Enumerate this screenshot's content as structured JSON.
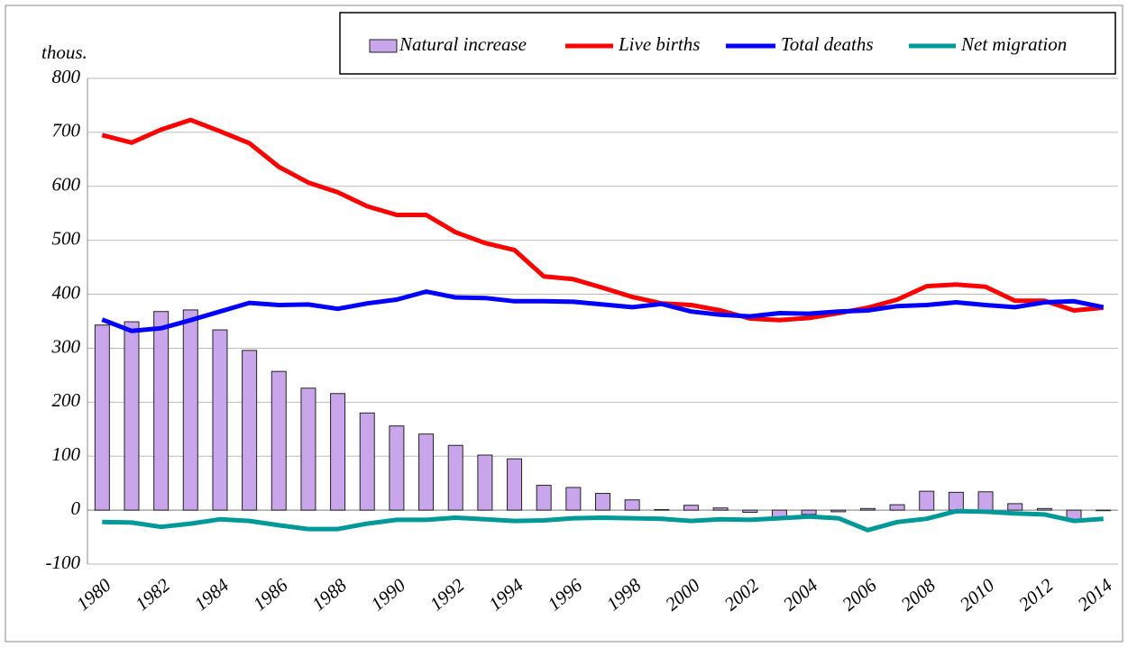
{
  "chart_data": {
    "type": "bar",
    "y_unit_label": "thous.",
    "categories": [
      "1980",
      null,
      "1982",
      null,
      "1984",
      null,
      "1986",
      null,
      "1988",
      null,
      "1990",
      null,
      "1992",
      null,
      "1994",
      null,
      "1996",
      null,
      "1998",
      null,
      "2000",
      null,
      "2002",
      null,
      "2004",
      null,
      "2006",
      null,
      "2008",
      null,
      "2010",
      null,
      "2012",
      null,
      "2014"
    ],
    "series": [
      {
        "name": "Natural increase",
        "type": "bar",
        "color": "#c9a6ec",
        "values": [
          343,
          349,
          368,
          371,
          334,
          296,
          257,
          226,
          216,
          180,
          156,
          141,
          120,
          102,
          95,
          46,
          42,
          31,
          19,
          1,
          9,
          4,
          -4,
          -13,
          -8,
          -3,
          3,
          10,
          35,
          33,
          34,
          12,
          3,
          -17,
          -1
        ]
      },
      {
        "name": "Live births",
        "type": "line",
        "color": "#ff0000",
        "values": [
          695,
          681,
          705,
          723,
          702,
          680,
          636,
          607,
          589,
          563,
          547,
          547,
          515,
          495,
          482,
          433,
          428,
          412,
          395,
          383,
          380,
          370,
          355,
          352,
          356,
          365,
          375,
          390,
          415,
          418,
          414,
          388,
          388,
          370,
          375
        ]
      },
      {
        "name": "Total deaths",
        "type": "line",
        "color": "#0000ff",
        "values": [
          353,
          332,
          337,
          352,
          368,
          384,
          380,
          381,
          373,
          383,
          390,
          405,
          394,
          393,
          387,
          387,
          386,
          381,
          376,
          382,
          368,
          362,
          359,
          365,
          364,
          368,
          370,
          378,
          380,
          385,
          380,
          376,
          385,
          387,
          376
        ]
      },
      {
        "name": "Net migration",
        "type": "line",
        "color": "#009999",
        "values": [
          -22,
          -23,
          -31,
          -25,
          -17,
          -20,
          -28,
          -35,
          -35,
          -25,
          -18,
          -18,
          -14,
          -17,
          -20,
          -19,
          -15,
          -14,
          -15,
          -16,
          -20,
          -17,
          -18,
          -15,
          -12,
          -15,
          -37,
          -22,
          -16,
          -2,
          -3,
          -6,
          -8,
          -20,
          -16
        ]
      }
    ],
    "ylim": [
      -100,
      800
    ],
    "yticks": [
      -100,
      0,
      100,
      200,
      300,
      400,
      500,
      600,
      700,
      800
    ],
    "grid": true,
    "legend": "top"
  }
}
